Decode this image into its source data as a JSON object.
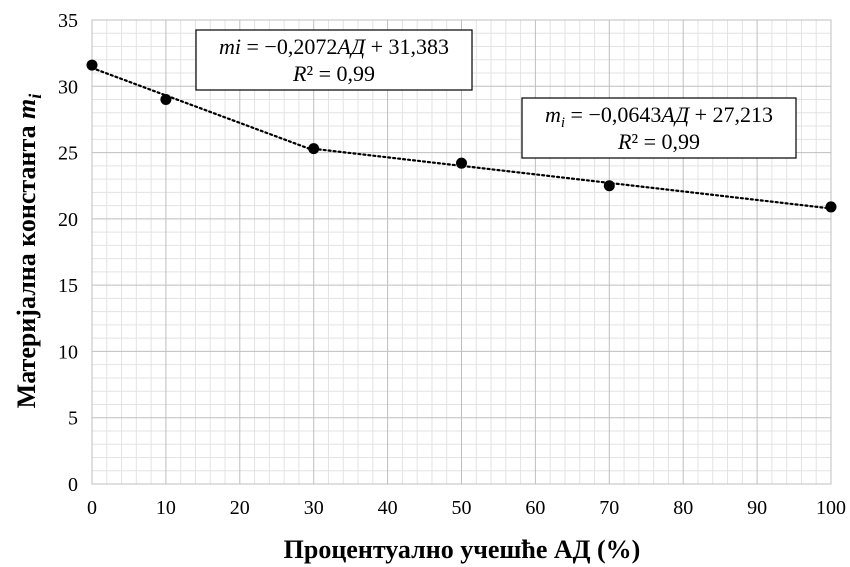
{
  "chart_data": {
    "type": "scatter",
    "xlabel": "Процентуално учешће АД (%)",
    "ylabel": "Материјална константа",
    "ylabel_symbol": "m",
    "ylabel_subscript": "i",
    "xlim": [
      0,
      100
    ],
    "ylim": [
      0,
      35
    ],
    "x_ticks": [
      "0",
      "10",
      "20",
      "30",
      "40",
      "50",
      "60",
      "70",
      "80",
      "90",
      "100"
    ],
    "y_ticks": [
      "0",
      "5",
      "10",
      "15",
      "20",
      "25",
      "30",
      "35"
    ],
    "grid": "major and minor",
    "series": [
      {
        "points": [
          {
            "x": 0,
            "y": 31.6
          },
          {
            "x": 10,
            "y": 29.0
          },
          {
            "x": 30,
            "y": 25.3
          },
          {
            "x": 50,
            "y": 24.2
          },
          {
            "x": 70,
            "y": 22.5
          },
          {
            "x": 100,
            "y": 20.9
          }
        ]
      }
    ],
    "trendlines": [
      {
        "style": "dotted",
        "x_range": [
          0,
          30
        ],
        "slope": -0.2072,
        "intercept": 31.383
      },
      {
        "style": "dotted",
        "x_range": [
          30,
          100
        ],
        "slope": -0.0643,
        "intercept": 27.213
      }
    ],
    "annotations": [
      {
        "line1_var": "mi",
        "line1_rest_a": " = −0,2072",
        "line1_ad": "АД",
        "line1_rest_b": " + 31,383",
        "r2_var": "R",
        "r2_rest": "² = 0,99"
      },
      {
        "line1_var": "m",
        "line1_sub": "i",
        "line1_rest_a": " = −0,0643",
        "line1_ad": "АД",
        "line1_rest_b": " + 27,213",
        "r2_var": "R",
        "r2_rest": "² = 0,99"
      }
    ]
  }
}
